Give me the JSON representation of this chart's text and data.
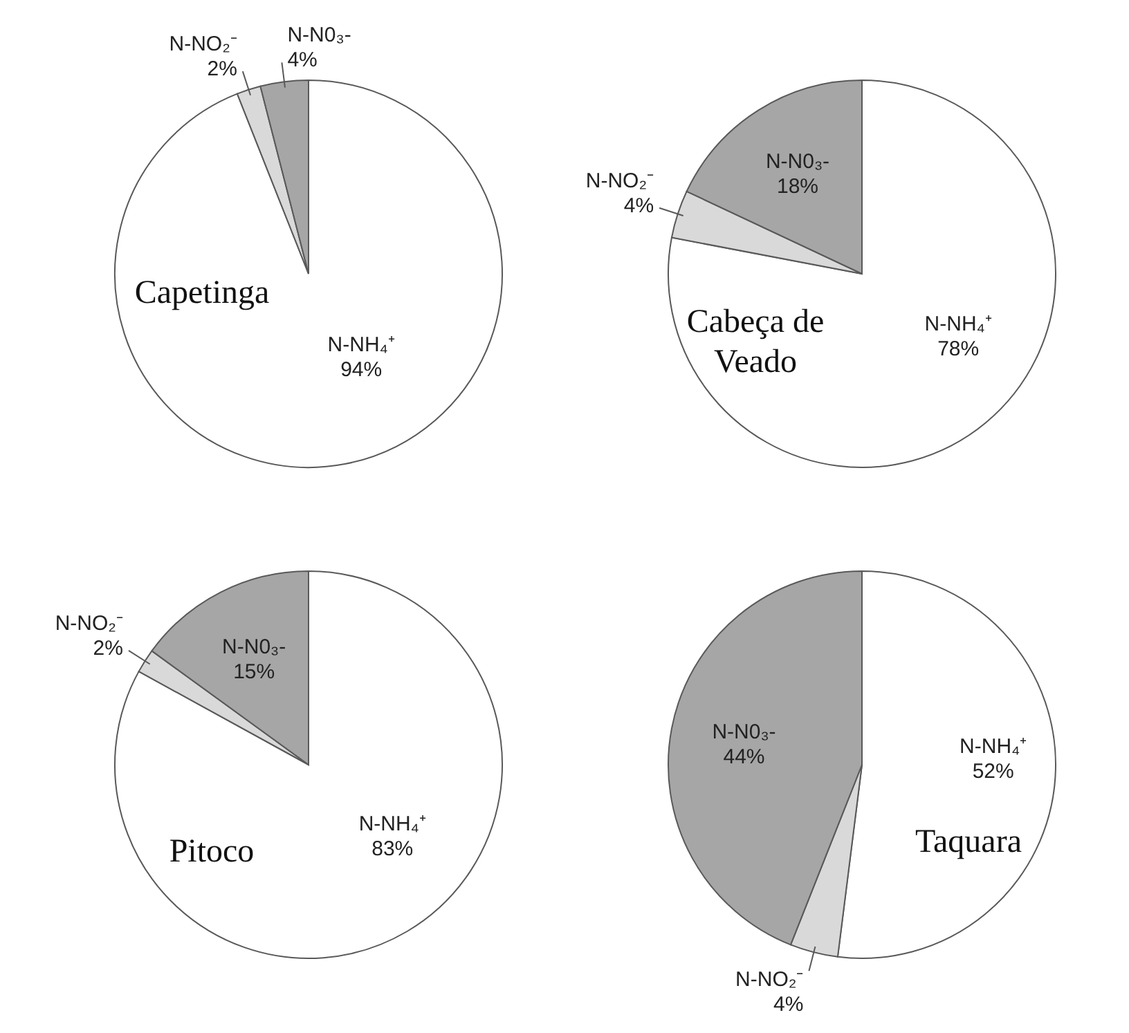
{
  "chart_data": [
    {
      "type": "pie",
      "title": "Capetinga",
      "categories": [
        "N-NH₄⁺",
        "N-NO₂⁻",
        "N-N0₃-"
      ],
      "values": [
        94,
        2,
        4
      ],
      "value_labels": [
        "94%",
        "2%",
        "4%"
      ],
      "colors": [
        "#ffffff",
        "#d9d9d9",
        "#a6a6a6"
      ]
    },
    {
      "type": "pie",
      "title": "Cabeça de Veado",
      "categories": [
        "N-NH₄⁺",
        "N-NO₂⁻",
        "N-N0₃-"
      ],
      "values": [
        78,
        4,
        18
      ],
      "value_labels": [
        "78%",
        "4%",
        "18%"
      ],
      "colors": [
        "#ffffff",
        "#d9d9d9",
        "#a6a6a6"
      ]
    },
    {
      "type": "pie",
      "title": "Pitoco",
      "categories": [
        "N-NH₄⁺",
        "N-NO₂⁻",
        "N-N0₃-"
      ],
      "values": [
        83,
        2,
        15
      ],
      "value_labels": [
        "83%",
        "2%",
        "15%"
      ],
      "colors": [
        "#ffffff",
        "#d9d9d9",
        "#a6a6a6"
      ]
    },
    {
      "type": "pie",
      "title": "Taquara",
      "categories": [
        "N-NH₄⁺",
        "N-NO₂⁻",
        "N-N0₃-"
      ],
      "values": [
        52,
        4,
        44
      ],
      "value_labels": [
        "52%",
        "4%",
        "44%"
      ],
      "colors": [
        "#ffffff",
        "#d9d9d9",
        "#a6a6a6"
      ]
    }
  ]
}
